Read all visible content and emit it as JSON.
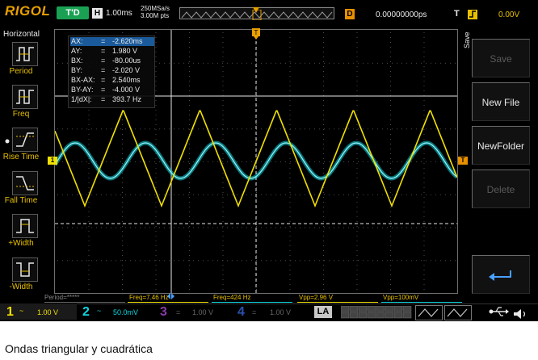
{
  "header": {
    "brand": "RIGOL",
    "trigger_status": "T'D",
    "h_label": "H",
    "timebase": "1.00ms",
    "sample_rate": "250MSa/s",
    "mem_depth": "3.00M pts",
    "d_label": "D",
    "delay": "0.00000000ps",
    "t_label": "T",
    "trigger_level": "0.00V"
  },
  "left_menu": {
    "title": "Horizontal",
    "items": [
      {
        "label": "Period"
      },
      {
        "label": "Freq"
      },
      {
        "label": "Rise Time"
      },
      {
        "label": "Fall Time"
      },
      {
        "label": "+Width"
      },
      {
        "label": "-Width"
      }
    ]
  },
  "cursor": {
    "rows": [
      {
        "key": "AX:",
        "value": "-2.620ms"
      },
      {
        "key": "AY:",
        "value": "1.980 V"
      },
      {
        "key": "BX:",
        "value": "-80.00us"
      },
      {
        "key": "BY:",
        "value": "-2.020 V"
      },
      {
        "key": "BX-AX:",
        "value": "2.540ms"
      },
      {
        "key": "BY-AY:",
        "value": "-4.000 V"
      },
      {
        "key": "1/|dX|:",
        "value": "393.7 Hz"
      }
    ],
    "equals": "="
  },
  "right_menu": {
    "title": "Save",
    "buttons": [
      "Save",
      "New File",
      "NewFolder",
      "Delete"
    ]
  },
  "measurements": {
    "period": "Period=*****",
    "freq1": "Freq=7.46 Hz",
    "freq2": "Freq=424 Hz",
    "vpp1": "Vpp=2.96 V",
    "vpp2": "Vpp=100mV"
  },
  "channels": [
    {
      "num": "1",
      "coupling": "~",
      "scale": "1.00 V"
    },
    {
      "num": "2",
      "coupling": "~",
      "scale": "50.0mV"
    },
    {
      "num": "3",
      "coupling": "=",
      "scale": "1.00 V"
    },
    {
      "num": "4",
      "coupling": "=",
      "scale": "1.00 V"
    }
  ],
  "bottom": {
    "la": "LA"
  },
  "markers": {
    "ch1": "1",
    "trig": "T"
  },
  "caption": "Ondas triangular y cuadrática",
  "colors": {
    "ch1": "#f0e000",
    "ch2": "#10d8e0",
    "ch3": "#c050e0",
    "ch4": "#3070ff",
    "accent": "#e8a000"
  },
  "icons": [
    "cursor-menu-icon",
    "return-icon",
    "usb-icon"
  ]
}
